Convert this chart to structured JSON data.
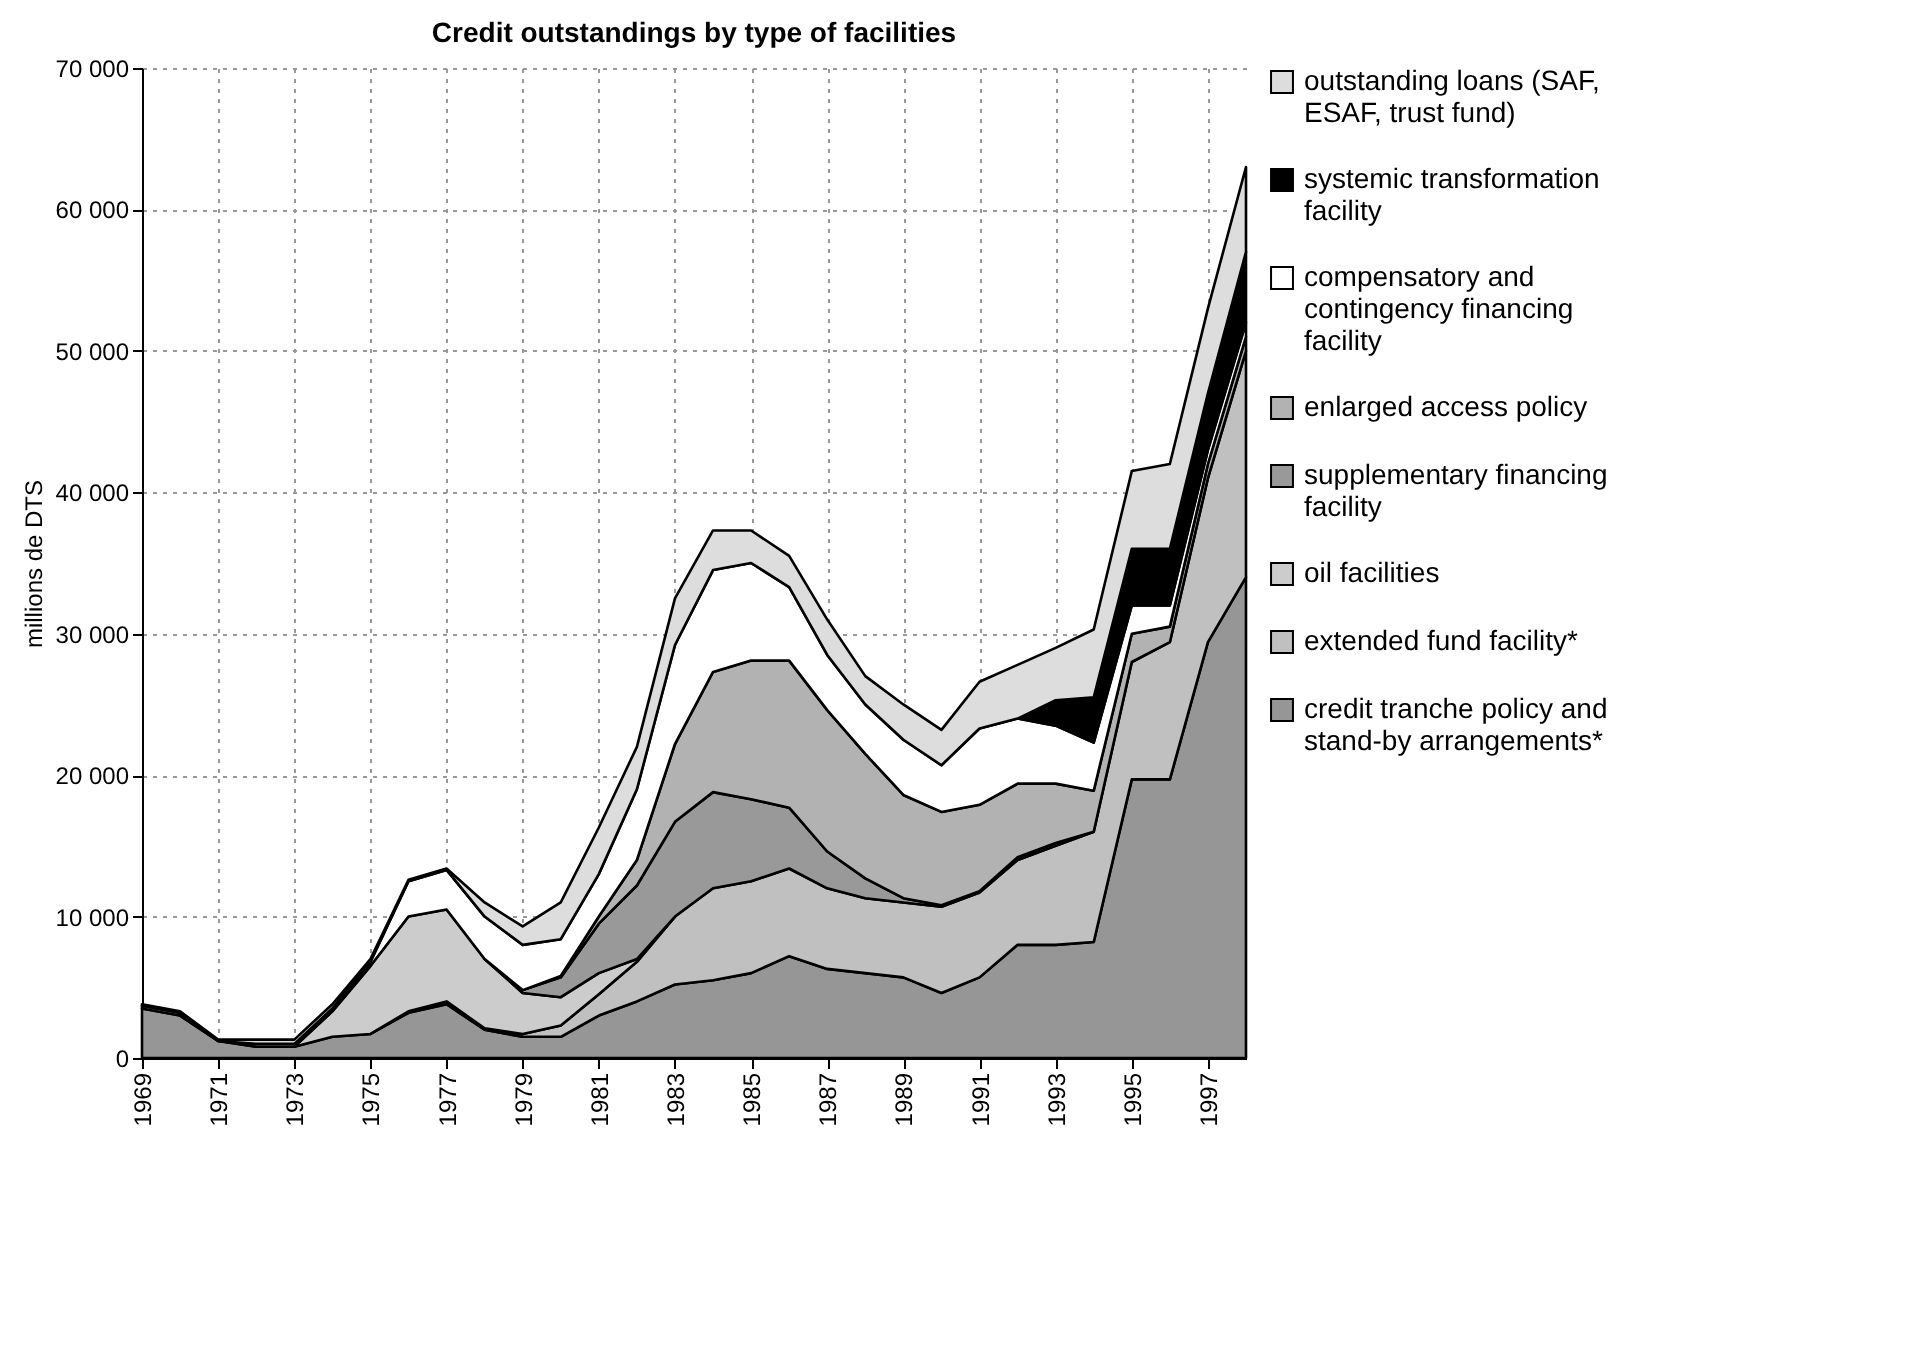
{
  "chart_data": {
    "type": "area",
    "title": "Credit outstandings by type of facilities",
    "ylabel": "millions de DTS",
    "stacked": true,
    "grid": true,
    "legend": "right",
    "x": [
      1969,
      1970,
      1971,
      1972,
      1973,
      1974,
      1975,
      1976,
      1977,
      1978,
      1979,
      1980,
      1981,
      1982,
      1983,
      1984,
      1985,
      1986,
      1987,
      1988,
      1989,
      1990,
      1991,
      1992,
      1993,
      1994,
      1995,
      1996,
      1997,
      1998
    ],
    "xlim": [
      1969,
      1998
    ],
    "xticks": [
      1969,
      1971,
      1973,
      1975,
      1977,
      1979,
      1981,
      1983,
      1985,
      1987,
      1989,
      1991,
      1993,
      1995,
      1997
    ],
    "ylim": [
      0,
      70000
    ],
    "yticks": [
      {
        "value": 0,
        "label": "0"
      },
      {
        "value": 10000,
        "label": "10 000"
      },
      {
        "value": 20000,
        "label": "20 000"
      },
      {
        "value": 30000,
        "label": "30 000"
      },
      {
        "value": 40000,
        "label": "40 000"
      },
      {
        "value": 50000,
        "label": "50 000"
      },
      {
        "value": 60000,
        "label": "60 000"
      },
      {
        "value": 70000,
        "label": "70 000"
      }
    ],
    "series": [
      {
        "name": "credit tranche policy and stand-by arrangements*",
        "color": "#969696",
        "values": [
          3500,
          3000,
          1200,
          800,
          800,
          1500,
          1700,
          3200,
          3800,
          2000,
          1500,
          1500,
          3000,
          4000,
          5200,
          5500,
          6000,
          7200,
          6300,
          6000,
          5700,
          4600,
          5700,
          8000,
          8000,
          8200,
          19700,
          19700,
          29400,
          34000
        ]
      },
      {
        "name": "extended fund facility*",
        "color": "#c0c0c0",
        "values": [
          null,
          null,
          null,
          null,
          null,
          null,
          0,
          100,
          200,
          100,
          200,
          800,
          1500,
          2800,
          4800,
          6500,
          6500,
          6200,
          5700,
          5300,
          5300,
          6100,
          6000,
          6000,
          7000,
          7800,
          8300,
          9700,
          11600,
          16000
        ]
      },
      {
        "name": "oil facilities",
        "color": "#cccccc",
        "values": [
          null,
          null,
          null,
          null,
          0,
          1800,
          4800,
          6700,
          6500,
          4900,
          2900,
          2000,
          1500,
          200,
          0,
          null,
          null,
          null,
          null,
          null,
          null,
          null,
          null,
          null,
          null,
          null,
          null,
          null,
          null,
          null
        ]
      },
      {
        "name": "supplementary financing facility",
        "color": "#999999",
        "values": [
          null,
          null,
          null,
          null,
          null,
          null,
          null,
          null,
          null,
          0,
          200,
          1400,
          3500,
          5200,
          6700,
          6800,
          5800,
          4300,
          2600,
          1400,
          300,
          100,
          100,
          200,
          200,
          0,
          null,
          null,
          null,
          null
        ]
      },
      {
        "name": "enlarged access policy",
        "color": "#b2b2b2",
        "values": [
          null,
          null,
          null,
          null,
          null,
          null,
          null,
          null,
          null,
          null,
          0,
          100,
          500,
          1800,
          5500,
          8500,
          9800,
          10400,
          10000,
          8800,
          7300,
          6600,
          6100,
          5200,
          4200,
          2900,
          2000,
          1100,
          1000,
          1000
        ]
      },
      {
        "name": "compensatory and contingency financing facility",
        "color": "#ffffff",
        "values": [
          200,
          200,
          0,
          200,
          200,
          200,
          300,
          2500,
          2800,
          3000,
          3200,
          2600,
          3000,
          5000,
          7000,
          7200,
          6900,
          5200,
          3900,
          3500,
          3900,
          3300,
          5400,
          4600,
          4100,
          3400,
          2000,
          1500,
          1000,
          1000
        ]
      },
      {
        "name": "systemic transformation facility",
        "color": "#000000",
        "values": [
          null,
          null,
          null,
          null,
          null,
          null,
          null,
          null,
          null,
          null,
          null,
          null,
          null,
          null,
          null,
          null,
          null,
          null,
          null,
          null,
          null,
          null,
          null,
          0,
          1800,
          3200,
          4000,
          4000,
          4000,
          5000
        ]
      },
      {
        "name": "outstanding loans (SAF, ESAF, trust fund)",
        "color": "#dddddd",
        "values": [
          100,
          100,
          100,
          300,
          300,
          300,
          200,
          100,
          100,
          1000,
          1300,
          2600,
          3300,
          3000,
          3300,
          2800,
          2300,
          2200,
          2500,
          2000,
          2500,
          2500,
          3300,
          3800,
          3700,
          4800,
          5500,
          6000,
          6000,
          6000
        ]
      }
    ]
  }
}
